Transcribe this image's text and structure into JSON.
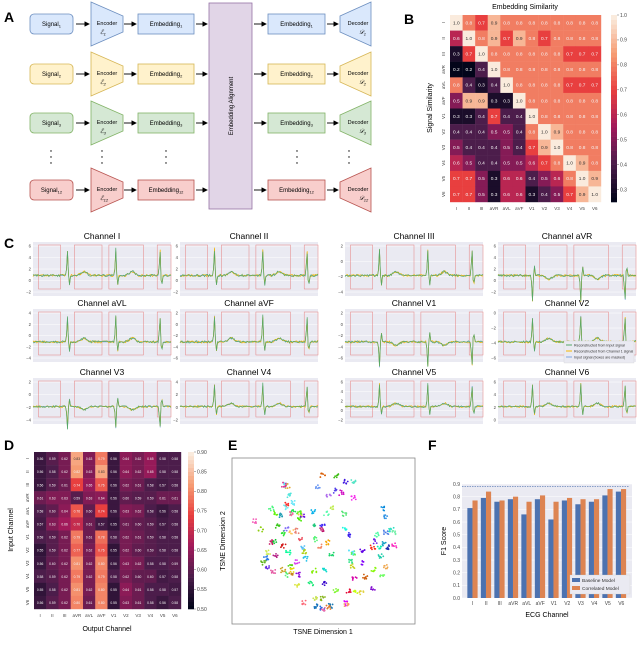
{
  "panel_labels": {
    "a": "A",
    "b": "B",
    "c": "C",
    "d": "D",
    "e": "E",
    "f": "F"
  },
  "diagram": {
    "rows": [
      {
        "signal": "Signal",
        "encoder": "Encoder",
        "embedding": "Embedding",
        "decoder": "Decoder",
        "enc_symbol": "ℰ",
        "dec_symbol": "𝒟",
        "sub": "1",
        "fill": "#dae8fc",
        "stroke": "#6c8ebf"
      },
      {
        "signal": "Signal",
        "encoder": "Encoder",
        "embedding": "Embedding",
        "decoder": "Decoder",
        "enc_symbol": "ℰ",
        "dec_symbol": "𝒟",
        "sub": "2",
        "fill": "#fff2cc",
        "stroke": "#d6b656"
      },
      {
        "signal": "Signal",
        "encoder": "Encoder",
        "embedding": "Embedding",
        "decoder": "Decoder",
        "enc_symbol": "ℰ",
        "dec_symbol": "𝒟",
        "sub": "3",
        "fill": "#d5e8d4",
        "stroke": "#82b366"
      },
      {
        "signal": "Signal",
        "encoder": "Encoder",
        "embedding": "Embedding",
        "decoder": "Decoder",
        "enc_symbol": "ℰ",
        "dec_symbol": "𝒟",
        "sub": "12",
        "fill": "#f8cecc",
        "stroke": "#b85450"
      }
    ],
    "alignment_label": "Embedding Alignment",
    "alignment_fill": "#e1d5e7",
    "alignment_stroke": "#9673a6"
  },
  "chart_data": [
    {
      "panel": "B",
      "type": "heatmap",
      "title": "Embedding Similarity",
      "ylabel": "Signal Similarity",
      "categories": [
        "I",
        "II",
        "III",
        "aVR",
        "aVL",
        "aVF",
        "V1",
        "V2",
        "V3",
        "V4",
        "V5",
        "V6"
      ],
      "colorbar": {
        "range": [
          0.25,
          1.0
        ],
        "ticks": [
          "0.3",
          "0.4",
          "0.5",
          "0.6",
          "0.7",
          "0.8",
          "0.9",
          "1.0"
        ],
        "colormap": "rocket"
      },
      "values": [
        [
          1.0,
          0.8,
          0.7,
          0.9,
          0.8,
          0.8,
          0.8,
          0.8,
          0.8,
          0.8,
          0.8,
          0.8
        ],
        [
          0.6,
          1.0,
          0.8,
          0.9,
          0.7,
          0.9,
          0.8,
          0.7,
          0.8,
          0.8,
          0.8,
          0.8
        ],
        [
          0.3,
          0.7,
          1.0,
          0.8,
          0.8,
          0.8,
          0.8,
          0.8,
          0.8,
          0.7,
          0.7,
          0.7
        ],
        [
          0.2,
          0.2,
          0.4,
          1.0,
          0.8,
          0.8,
          0.8,
          0.8,
          0.8,
          0.8,
          0.8,
          0.8
        ],
        [
          0.8,
          0.4,
          0.3,
          0.4,
          1.0,
          0.8,
          0.8,
          0.8,
          0.8,
          0.7,
          0.7,
          0.7
        ],
        [
          0.5,
          0.9,
          0.9,
          0.3,
          0.3,
          1.0,
          0.8,
          0.8,
          0.8,
          0.8,
          0.8,
          0.8
        ],
        [
          0.3,
          0.3,
          0.4,
          0.7,
          0.4,
          0.4,
          1.0,
          0.8,
          0.8,
          0.8,
          0.8,
          0.8
        ],
        [
          0.4,
          0.4,
          0.4,
          0.5,
          0.5,
          0.4,
          0.8,
          1.0,
          0.9,
          0.8,
          0.8,
          0.8
        ],
        [
          0.5,
          0.4,
          0.4,
          0.4,
          0.5,
          0.4,
          0.7,
          0.9,
          1.0,
          0.8,
          0.8,
          0.8
        ],
        [
          0.6,
          0.5,
          0.4,
          0.4,
          0.5,
          0.5,
          0.6,
          0.7,
          0.8,
          1.0,
          0.9,
          0.8
        ],
        [
          0.7,
          0.7,
          0.5,
          0.3,
          0.6,
          0.6,
          0.4,
          0.5,
          0.6,
          0.8,
          1.0,
          0.9
        ],
        [
          0.7,
          0.7,
          0.5,
          0.3,
          0.6,
          0.6,
          0.3,
          0.4,
          0.5,
          0.7,
          0.9,
          1.0
        ]
      ]
    },
    {
      "panel": "C",
      "type": "line",
      "legend": [
        "Reconstructed from Input signal",
        "Reconstructed from Channel 1 signal",
        "Input signal (boxes are masked)"
      ],
      "colors": [
        "#55a868",
        "#f5b800",
        "#7ea6e0"
      ],
      "mask_color": "#e58080",
      "channels": [
        {
          "title": "Channel I",
          "yticks": [
            "6",
            "4",
            "2",
            "0",
            "−2"
          ]
        },
        {
          "title": "Channel II",
          "yticks": [
            "6",
            "4",
            "2",
            "0",
            "−2"
          ]
        },
        {
          "title": "Channel III",
          "yticks": [
            "2",
            "0",
            "−2",
            "−4"
          ]
        },
        {
          "title": "Channel aVR",
          "yticks": [
            "6",
            "4",
            "2",
            "0",
            "−2"
          ]
        },
        {
          "title": "Channel aVL",
          "yticks": [
            "4",
            "2",
            "0",
            "−2",
            "−4"
          ]
        },
        {
          "title": "Channel aVF",
          "yticks": [
            "2",
            "0",
            "−2",
            "−4",
            "−6"
          ]
        },
        {
          "title": "Channel V1",
          "yticks": [
            "2",
            "0",
            "−2",
            "−4",
            "−6"
          ]
        },
        {
          "title": "Channel V2",
          "yticks": [
            "0",
            "−2",
            "−4",
            "−6"
          ]
        },
        {
          "title": "Channel V3",
          "yticks": [
            "2",
            "0",
            "−2",
            "−4"
          ]
        },
        {
          "title": "Channel V4",
          "yticks": [
            "4",
            "2",
            "0",
            "−2"
          ]
        },
        {
          "title": "Channel V5",
          "yticks": [
            "6",
            "4",
            "2",
            "0",
            "−2"
          ]
        },
        {
          "title": "Channel V6",
          "yticks": [
            "6",
            "4",
            "2",
            "0"
          ]
        }
      ]
    },
    {
      "panel": "D",
      "type": "heatmap",
      "xlabel": "Output Channel",
      "ylabel": "Input Channel",
      "categories": [
        "I",
        "II",
        "III",
        "aVR",
        "aVL",
        "aVF",
        "V1",
        "V2",
        "V3",
        "V4",
        "V5",
        "V6"
      ],
      "colorbar": {
        "range": [
          0.5,
          0.9
        ],
        "ticks": [
          "0.50",
          "0.55",
          "0.60",
          "0.65",
          "0.70",
          "0.75",
          "0.80",
          "0.85",
          "0.90"
        ],
        "colormap": "rocket"
      },
      "values": [
        [
          0.56,
          0.59,
          0.62,
          0.83,
          0.63,
          0.79,
          0.56,
          0.64,
          0.62,
          0.65,
          0.58,
          0.58
        ],
        [
          0.56,
          0.58,
          0.62,
          0.82,
          0.63,
          0.83,
          0.56,
          0.64,
          0.62,
          0.65,
          0.58,
          0.58
        ],
        [
          0.56,
          0.59,
          0.61,
          0.74,
          0.65,
          0.76,
          0.56,
          0.62,
          0.61,
          0.58,
          0.57,
          0.58
        ],
        [
          0.61,
          0.63,
          0.63,
          0.59,
          0.63,
          0.64,
          0.56,
          0.6,
          0.59,
          0.59,
          0.61,
          0.61
        ],
        [
          0.58,
          0.6,
          0.64,
          0.76,
          0.6,
          0.74,
          0.56,
          0.63,
          0.62,
          0.58,
          0.56,
          0.58
        ],
        [
          0.57,
          0.63,
          0.66,
          0.7,
          0.61,
          0.57,
          0.55,
          0.61,
          0.6,
          0.59,
          0.57,
          0.58
        ],
        [
          0.58,
          0.59,
          0.62,
          0.79,
          0.61,
          0.78,
          0.58,
          0.62,
          0.61,
          0.59,
          0.58,
          0.58
        ],
        [
          0.55,
          0.59,
          0.62,
          0.77,
          0.62,
          0.76,
          0.55,
          0.62,
          0.6,
          0.59,
          0.58,
          0.58
        ],
        [
          0.56,
          0.6,
          0.62,
          0.81,
          0.62,
          0.8,
          0.56,
          0.63,
          0.62,
          0.58,
          0.58,
          0.59
        ],
        [
          0.58,
          0.59,
          0.62,
          0.79,
          0.62,
          0.79,
          0.58,
          0.62,
          0.6,
          0.6,
          0.57,
          0.58
        ],
        [
          0.55,
          0.58,
          0.62,
          0.81,
          0.62,
          0.8,
          0.55,
          0.64,
          0.61,
          0.58,
          0.58,
          0.57
        ],
        [
          0.56,
          0.59,
          0.62,
          0.8,
          0.61,
          0.8,
          0.55,
          0.63,
          0.61,
          0.58,
          0.56,
          0.58
        ]
      ]
    },
    {
      "panel": "E",
      "type": "scatter",
      "xlabel": "TSNE Dimension 1",
      "ylabel": "TSNE Dimension 2"
    },
    {
      "panel": "F",
      "type": "bar",
      "xlabel": "ECG Channel",
      "ylabel": "F1 Score",
      "categories": [
        "I",
        "II",
        "III",
        "aVR",
        "aVL",
        "aVF",
        "V1",
        "V2",
        "V3",
        "V4",
        "V5",
        "V6"
      ],
      "ylim": [
        0,
        0.9
      ],
      "yticks": [
        "0.0",
        "0.1",
        "0.2",
        "0.3",
        "0.4",
        "0.5",
        "0.6",
        "0.7",
        "0.8",
        "0.9"
      ],
      "reference_line": 0.88,
      "legend_position": "bottom-right",
      "series": [
        {
          "name": "Baseline Model",
          "color": "#4c72b0",
          "values": [
            0.71,
            0.79,
            0.76,
            0.78,
            0.66,
            0.78,
            0.62,
            0.77,
            0.74,
            0.76,
            0.81,
            0.84
          ]
        },
        {
          "name": "Correlated Model",
          "color": "#dd8452",
          "values": [
            0.77,
            0.84,
            0.77,
            0.8,
            0.76,
            0.81,
            0.76,
            0.79,
            0.78,
            0.78,
            0.86,
            0.86
          ]
        }
      ]
    }
  ]
}
